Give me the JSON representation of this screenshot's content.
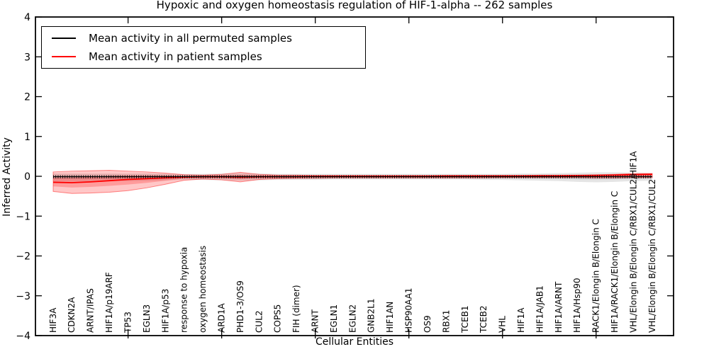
{
  "chart_data": {
    "type": "line",
    "title": "Hypoxic and oxygen homeostasis regulation of HIF-1-alpha -- 262 samples",
    "xlabel": "Cellular Entities",
    "ylabel": "Inferred Activity",
    "ylim": [
      -4,
      4
    ],
    "ytick_labels": [
      "4",
      "3",
      "2",
      "1",
      "0",
      "−1",
      "−2",
      "−3",
      "−4"
    ],
    "xtick_every": 5,
    "grid": false,
    "legend_position": "upper left",
    "categories": [
      "HIF3A",
      "CDKN2A",
      "ARNT/IPAS",
      "HIF1A/p19ARF",
      "TP53",
      "EGLN3",
      "HIF1A/p53",
      "response to hypoxia",
      "oxygen homeostasis",
      "ARD1A",
      "PHD1-3/OS9",
      "CUL2",
      "COPS5",
      "FIH (dimer)",
      "ARNT",
      "EGLN1",
      "EGLN2",
      "GNB2L1",
      "HIF1AN",
      "HSP90AA1",
      "OS9",
      "RBX1",
      "TCEB1",
      "TCEB2",
      "VHL",
      "HIF1A",
      "HIF1A/JAB1",
      "HIF1A/ARNT",
      "HIF1A/Hsp90",
      "RACK1/Elongin B/Elongin C",
      "HIF1A/RACK1/Elongin B/Elongin C",
      "VHL/Elongin B/Elongin C/RBX1/CUL2/HIF1A",
      "VHL/Elongin B/Elongin C/RBX1/CUL2"
    ],
    "series": [
      {
        "name": "Mean activity in all permuted samples",
        "color": "#000000",
        "values": [
          -0.01,
          -0.01,
          -0.01,
          -0.01,
          -0.01,
          -0.01,
          -0.01,
          -0.01,
          -0.01,
          -0.01,
          -0.01,
          -0.01,
          -0.01,
          -0.01,
          -0.01,
          -0.01,
          -0.01,
          -0.01,
          -0.01,
          -0.01,
          -0.01,
          -0.01,
          -0.01,
          -0.01,
          -0.01,
          -0.01,
          -0.01,
          -0.01,
          -0.01,
          -0.01,
          -0.01,
          -0.01,
          -0.01
        ],
        "band_upper": [
          0.07,
          0.07,
          0.07,
          0.07,
          0.07,
          0.07,
          0.06,
          0.06,
          0.06,
          0.07,
          0.08,
          0.07,
          0.06,
          0.06,
          0.06,
          0.06,
          0.06,
          0.06,
          0.06,
          0.06,
          0.06,
          0.06,
          0.06,
          0.06,
          0.06,
          0.07,
          0.07,
          0.08,
          0.09,
          0.1,
          0.1,
          0.09,
          0.08
        ],
        "band_lower": [
          -0.13,
          -0.13,
          -0.13,
          -0.12,
          -0.12,
          -0.11,
          -0.1,
          -0.09,
          -0.09,
          -0.1,
          -0.11,
          -0.1,
          -0.09,
          -0.09,
          -0.09,
          -0.08,
          -0.08,
          -0.08,
          -0.08,
          -0.08,
          -0.08,
          -0.08,
          -0.08,
          -0.09,
          -0.09,
          -0.1,
          -0.11,
          -0.12,
          -0.14,
          -0.15,
          -0.14,
          -0.12,
          -0.11
        ]
      },
      {
        "name": "Mean activity in patient samples",
        "color": "#ff0000",
        "values": [
          -0.15,
          -0.16,
          -0.14,
          -0.11,
          -0.08,
          -0.06,
          -0.04,
          -0.02,
          -0.01,
          -0.01,
          -0.02,
          -0.01,
          -0.01,
          -0.01,
          0.0,
          0.0,
          0.0,
          0.0,
          0.0,
          0.0,
          0.0,
          0.01,
          0.01,
          0.01,
          0.01,
          0.01,
          0.01,
          0.01,
          0.02,
          0.02,
          0.03,
          0.04,
          0.05
        ],
        "band_upper": [
          0.11,
          0.13,
          0.14,
          0.15,
          0.13,
          0.11,
          0.08,
          0.04,
          0.03,
          0.05,
          0.1,
          0.05,
          0.03,
          0.03,
          0.02,
          0.02,
          0.02,
          0.02,
          0.02,
          0.02,
          0.02,
          0.02,
          0.02,
          0.02,
          0.02,
          0.02,
          0.03,
          0.03,
          0.03,
          0.04,
          0.05,
          0.07,
          0.07
        ],
        "band_lower": [
          -0.38,
          -0.43,
          -0.42,
          -0.4,
          -0.36,
          -0.29,
          -0.2,
          -0.1,
          -0.07,
          -0.09,
          -0.14,
          -0.08,
          -0.06,
          -0.05,
          -0.05,
          -0.04,
          -0.04,
          -0.04,
          -0.04,
          -0.04,
          -0.04,
          -0.04,
          -0.04,
          -0.04,
          -0.03,
          -0.03,
          -0.03,
          -0.03,
          -0.03,
          -0.04,
          -0.04,
          -0.03,
          -0.03
        ]
      }
    ],
    "legend": {
      "entries": [
        {
          "label": "Mean activity in all permuted samples",
          "color": "#000000"
        },
        {
          "label": "Mean activity in patient samples",
          "color": "#ff0000"
        }
      ]
    }
  },
  "colors": {
    "permuted_band": "rgba(0,0,0,0.10)",
    "patient_band": "rgba(255,0,0,0.22)",
    "patient_band_edge": "rgba(255,0,0,0.45)",
    "axis": "#000000"
  }
}
